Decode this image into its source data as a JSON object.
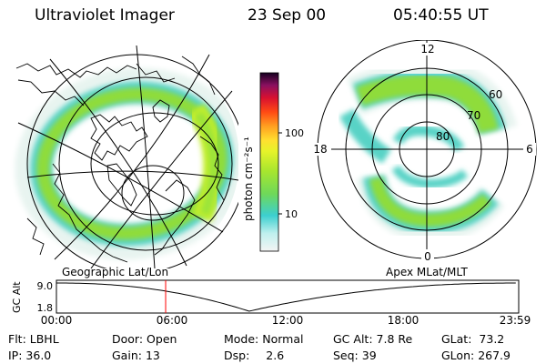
{
  "header": {
    "instrument": "Ultraviolet Imager",
    "date": "23 Sep 00",
    "time": "05:40:55 UT"
  },
  "colorbar": {
    "unit_label": "photon cm⁻²s⁻¹",
    "ticks": [
      {
        "label": "100",
        "value": 100
      },
      {
        "label": "10",
        "value": 10
      }
    ],
    "range": [
      3,
      500
    ],
    "scale": "log",
    "colors": [
      "#f2f2f2",
      "#8ee6e6",
      "#3ccfcf",
      "#9be635",
      "#c8f020",
      "#fff030",
      "#ffa020",
      "#ff5010",
      "#e01010",
      "#a00040",
      "#500050",
      "#100020"
    ]
  },
  "left_map": {
    "projection_label": "Geographic Lat/Lon"
  },
  "right_map": {
    "projection_label": "Apex MLat/MLT",
    "mlt_labels": [
      "12",
      "18",
      "6",
      "0"
    ],
    "mlat_labels": [
      "60",
      "70",
      "80"
    ]
  },
  "altitude_plot": {
    "ylabel": "GC Alt",
    "yticks": [
      "9.0",
      "1.8"
    ],
    "xticks": [
      "00:00",
      "06:00",
      "12:00",
      "18:00",
      "23:59"
    ],
    "current_time_marker": "05:40",
    "marker_color": "#ff0000"
  },
  "info": {
    "flt": {
      "label": "Flt:",
      "value": "LBHL"
    },
    "ip": {
      "label": "IP:",
      "value": "36.0"
    },
    "door": {
      "label": "Door:",
      "value": "Open"
    },
    "gain": {
      "label": "Gain:",
      "value": "13"
    },
    "mode": {
      "label": "Mode:",
      "value": "Normal"
    },
    "dsp": {
      "label": "Dsp:",
      "value": "2.6"
    },
    "gcalt": {
      "label": "GC Alt:",
      "value": "7.8 Re"
    },
    "seq": {
      "label": "Seq:",
      "value": "39"
    },
    "glat": {
      "label": "GLat:",
      "value": "73.2"
    },
    "glon": {
      "label": "GLon:",
      "value": "267.9"
    }
  },
  "colors": {
    "aurora_green": "#8fdc3a",
    "aurora_cyan": "#52d2c8",
    "aurora_yellow": "#c6ee2a",
    "grid": "#000000"
  }
}
